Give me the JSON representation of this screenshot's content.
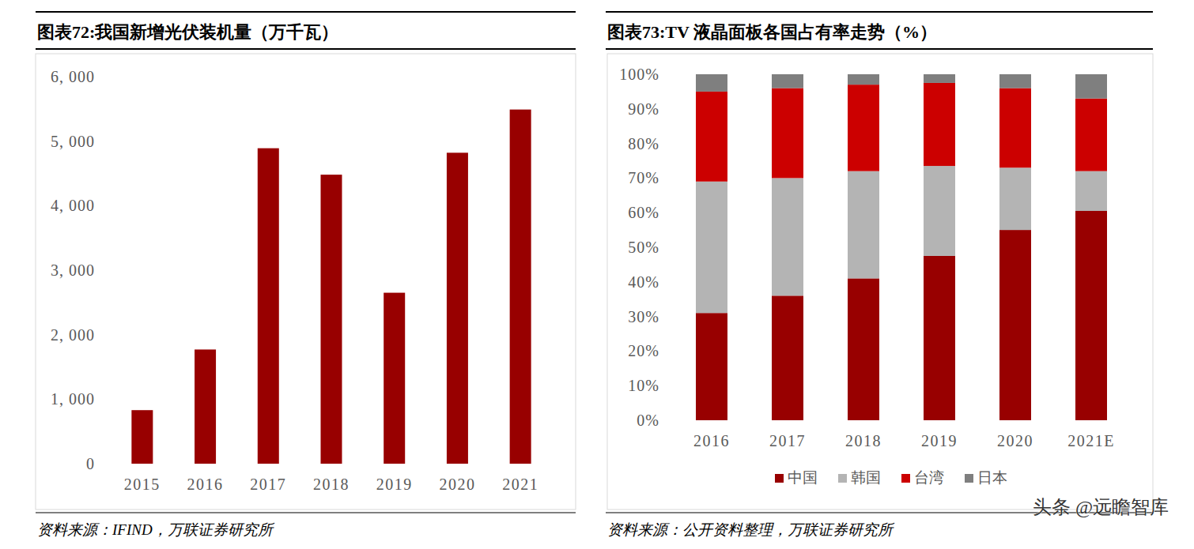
{
  "chart_data": [
    {
      "type": "bar",
      "title": "图表72:我国新增光伏装机量（万千瓦）",
      "source": "资料来源：IFIND，万联证券研究所",
      "categories": [
        "2015",
        "2016",
        "2017",
        "2018",
        "2019",
        "2020",
        "2021"
      ],
      "values": [
        830,
        1770,
        4890,
        4480,
        2650,
        4820,
        5490
      ],
      "color": "#980000",
      "ylim": [
        0,
        6000
      ],
      "yticks": [
        0,
        {
          "value": 1000,
          "label": "1, 000"
        },
        {
          "value": 2000,
          "label": "2, 000"
        },
        {
          "value": 3000,
          "label": "3, 000"
        },
        {
          "value": 4000,
          "label": "4, 000"
        },
        {
          "value": 5000,
          "label": "5, 000"
        },
        {
          "value": 6000,
          "label": "6, 000"
        }
      ],
      "grid": false
    },
    {
      "type": "bar",
      "title": "图表73:TV 液晶面板各国占有率走势（%）",
      "source": "资料来源：公开资料整理，万联证券研究所",
      "categories": [
        "2016",
        "2017",
        "2018",
        "2019",
        "2020",
        "2021E"
      ],
      "series": [
        {
          "name": "中国",
          "color": "#980000",
          "values": [
            31,
            36,
            41,
            47.5,
            55,
            60.5
          ]
        },
        {
          "name": "韩国",
          "color": "#b4b4b4",
          "values": [
            38,
            34,
            31,
            26,
            18,
            11.5
          ]
        },
        {
          "name": "台湾",
          "color": "#cc0000",
          "values": [
            26,
            26,
            25,
            24,
            23,
            21
          ]
        },
        {
          "name": "日本",
          "color": "#7f7f7f",
          "values": [
            5,
            4,
            3,
            2.5,
            4,
            7
          ]
        }
      ],
      "stacked": true,
      "legend": "bottom",
      "ylim": [
        0,
        100
      ],
      "yticks": [
        {
          "value": 0,
          "label": "0%"
        },
        {
          "value": 10,
          "label": "10%"
        },
        {
          "value": 20,
          "label": "20%"
        },
        {
          "value": 30,
          "label": "30%"
        },
        {
          "value": 40,
          "label": "40%"
        },
        {
          "value": 50,
          "label": "50%"
        },
        {
          "value": 60,
          "label": "60%"
        },
        {
          "value": 70,
          "label": "70%"
        },
        {
          "value": 80,
          "label": "80%"
        },
        {
          "value": 90,
          "label": "90%"
        },
        {
          "value": 100,
          "label": "100%"
        }
      ],
      "grid": false
    }
  ],
  "watermark": "头条 @远瞻智库"
}
